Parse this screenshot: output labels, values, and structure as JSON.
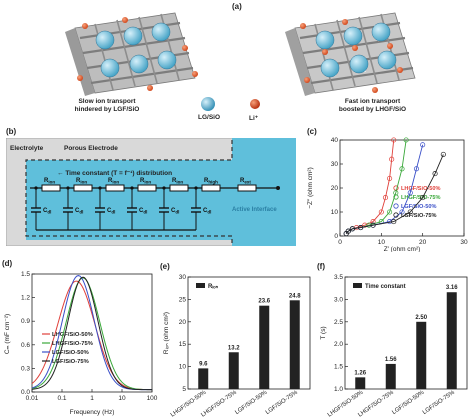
{
  "panel_a": {
    "label": "(a)",
    "left_caption_1": "Slow ion transport",
    "left_caption_2": "hindered by LGF/SiO",
    "right_caption_1": "Fast ion transport",
    "right_caption_2": "boosted by LHGF/SiO",
    "legend_sphere": "LG/SiO",
    "legend_li": "Li⁺",
    "colors": {
      "sphere": "#4aa6c8",
      "li": "#d24a1e",
      "graphene": "#8a8a8a"
    }
  },
  "panel_b": {
    "label": "(b)",
    "electrolyte": "Electrolyte",
    "porous_electrode": "Porous Electrode",
    "time_constant": "Time constant (T = f⁻¹) distribution",
    "active_interface": "Active Interface",
    "resistors": [
      "R₀ₙ",
      "R₀ₙ",
      "R₀ₙ",
      "R₀ₙ",
      "R₀ₙ",
      "Rₕᵢₕ",
      "Rₑₗ"
    ],
    "resistor_labels": [
      "R",
      "R",
      "R",
      "R",
      "R",
      "R",
      "R"
    ],
    "resistor_subs": [
      "ion",
      "ion",
      "ion",
      "ion",
      "ion",
      "high",
      "ext"
    ],
    "capacitor_labels": [
      "C",
      "C",
      "C",
      "C",
      "C",
      "C"
    ],
    "capacitor_subs": [
      "dl",
      "dl",
      "dl",
      "dl",
      "dl",
      "dl"
    ],
    "colors": {
      "electrolyte_bg": "#d9d9d9",
      "electrode_bg": "#5fbfdb",
      "dash": "#333333"
    }
  },
  "panels_chart_labels": {
    "c": "(c)",
    "d": "(d)",
    "e": "(e)",
    "f": "(f)"
  },
  "chart_data": [
    {
      "id": "c",
      "type": "scatter",
      "xlabel": "Z′ (ohm cm²)",
      "ylabel": "−Z″ (ohm cm²)",
      "xlim": [
        0,
        30
      ],
      "ylim": [
        0,
        40
      ],
      "xticks": [
        0,
        10,
        20,
        30
      ],
      "yticks": [
        0,
        10,
        20,
        30,
        40
      ],
      "series": [
        {
          "name": "LHGF/SiO-50%",
          "color": "#e0403a",
          "x": [
            1.5,
            2,
            3,
            4,
            6,
            8,
            10,
            11,
            12,
            12.5,
            13
          ],
          "y": [
            1,
            2,
            3,
            3.5,
            4.5,
            6,
            10,
            16,
            24,
            32,
            40
          ]
        },
        {
          "name": "LHGF/SiO-75%",
          "color": "#3aa83a",
          "x": [
            1.5,
            2,
            3,
            5,
            7,
            10,
            12,
            13.5,
            15,
            16
          ],
          "y": [
            1,
            2,
            3,
            3.5,
            4.5,
            6,
            10,
            18,
            28,
            40
          ]
        },
        {
          "name": "LGF/SiO-50%",
          "color": "#3a4fc8",
          "x": [
            1.5,
            2,
            3,
            5,
            8,
            12,
            15,
            17,
            18.5,
            20
          ],
          "y": [
            1,
            2,
            3,
            3.5,
            4.5,
            6,
            10,
            18,
            28,
            38
          ]
        },
        {
          "name": "LGF/SiO-75%",
          "color": "#222222",
          "x": [
            1.5,
            2,
            3,
            5,
            8,
            13,
            17,
            20,
            23,
            25
          ],
          "y": [
            1,
            2,
            3,
            3.5,
            4.5,
            6,
            10,
            16,
            26,
            34
          ]
        }
      ]
    },
    {
      "id": "d",
      "type": "line",
      "xlabel": "Frequency (Hz)",
      "ylabel": "Cₘ (mF cm⁻²)",
      "xscale": "log",
      "xlim": [
        0.01,
        100
      ],
      "ylim": [
        0,
        1.5
      ],
      "xticks": [
        0.01,
        0.1,
        1,
        10,
        100
      ],
      "xtick_labels": [
        "0.01",
        "0.1",
        "1",
        "10",
        "100"
      ],
      "yticks": [
        0,
        0.3,
        0.6,
        0.9,
        1.2,
        1.5
      ],
      "ytick_labels": [
        "0.0",
        "0.3",
        "0.6",
        "0.9",
        "1.2",
        "1.5"
      ],
      "series": [
        {
          "name": "LHGF/SiO-50%",
          "color": "#e0403a",
          "peak_freq": 0.3,
          "peak": 1.38,
          "width": 1.1
        },
        {
          "name": "LHGF/SiO-75%",
          "color": "#3aa83a",
          "peak_freq": 0.5,
          "peak": 1.42,
          "width": 1.0
        },
        {
          "name": "LGF/SiO-50%",
          "color": "#3a4fc8",
          "peak_freq": 0.35,
          "peak": 1.45,
          "width": 0.95
        },
        {
          "name": "LGF/SiO-75%",
          "color": "#222222",
          "peak_freq": 0.5,
          "peak": 1.43,
          "width": 0.9
        }
      ]
    },
    {
      "id": "e",
      "type": "bar",
      "categories": [
        "LHGF/SiO-50%",
        "LHGF/SiO-75%",
        "LGF/SiO-50%",
        "LGF/SiO-75%"
      ],
      "values": [
        9.6,
        13.2,
        23.6,
        24.8
      ],
      "value_labels": [
        "9.6",
        "13.2",
        "23.6",
        "24.8"
      ],
      "legend": "Rᵢₒₙ",
      "ylabel": "Rᵢₒₙ (ohm cm²)",
      "ylim": [
        5,
        30
      ],
      "yticks": [
        5,
        10,
        15,
        20,
        25,
        30
      ]
    },
    {
      "id": "f",
      "type": "bar",
      "categories": [
        "LHGF/SiO-50%",
        "LHGF/SiO-75%",
        "LGF/SiO-50%",
        "LGF/SiO-75%"
      ],
      "values": [
        1.26,
        1.56,
        2.5,
        3.16
      ],
      "value_labels": [
        "1.26",
        "1.56",
        "2.50",
        "3.16"
      ],
      "legend": "Time constant",
      "ylabel": "T (s)",
      "ylim": [
        1.0,
        3.5
      ],
      "yticks": [
        1.0,
        1.5,
        2.0,
        2.5,
        3.0,
        3.5
      ],
      "ytick_labels": [
        "1.0",
        "1.5",
        "2.0",
        "2.5",
        "3.0",
        "3.5"
      ]
    }
  ]
}
